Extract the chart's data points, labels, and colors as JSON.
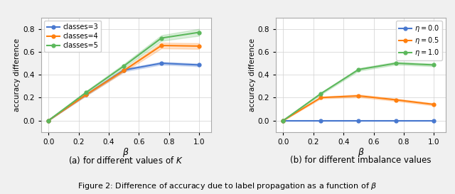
{
  "left": {
    "beta": [
      0.0,
      0.25,
      0.5,
      0.75,
      1.0
    ],
    "classes3_mean": [
      0.0,
      0.225,
      0.44,
      0.5,
      0.485
    ],
    "classes3_std": [
      0.0,
      0.008,
      0.012,
      0.012,
      0.012
    ],
    "classes4_mean": [
      0.0,
      0.225,
      0.435,
      0.655,
      0.65
    ],
    "classes4_std": [
      0.0,
      0.008,
      0.012,
      0.025,
      0.025
    ],
    "classes5_mean": [
      0.0,
      0.245,
      0.475,
      0.72,
      0.77
    ],
    "classes5_std": [
      0.0,
      0.012,
      0.018,
      0.025,
      0.03
    ],
    "colors": [
      "#4878cf",
      "#ff7f0e",
      "#5cb85c"
    ],
    "labels": [
      "classes=3",
      "classes=4",
      "classes=5"
    ],
    "xlabel": "$\\beta$",
    "ylabel": "accuracy difference",
    "ylim": [
      -0.1,
      0.9
    ],
    "yticks": [
      0.0,
      0.2,
      0.4,
      0.6,
      0.8
    ],
    "xticks": [
      0.0,
      0.2,
      0.4,
      0.6,
      0.8,
      1.0
    ],
    "caption": "(a) for different values of $K$"
  },
  "right": {
    "beta": [
      0.0,
      0.25,
      0.5,
      0.75,
      1.0
    ],
    "eta0_mean": [
      0.0,
      0.0,
      0.0,
      0.0,
      0.0
    ],
    "eta0_std": [
      0.0,
      0.0,
      0.0,
      0.0,
      0.0
    ],
    "eta05_mean": [
      0.0,
      0.2,
      0.215,
      0.18,
      0.14
    ],
    "eta05_std": [
      0.0,
      0.008,
      0.012,
      0.01,
      0.01
    ],
    "eta1_mean": [
      0.0,
      0.235,
      0.445,
      0.5,
      0.485
    ],
    "eta1_std": [
      0.0,
      0.008,
      0.012,
      0.012,
      0.012
    ],
    "colors": [
      "#4878cf",
      "#ff7f0e",
      "#5cb85c"
    ],
    "labels": [
      "$\\eta=0.0$",
      "$\\eta=0.5$",
      "$\\eta=1.0$"
    ],
    "xlabel": "$\\beta$",
    "ylabel": "accuracy difference",
    "ylim": [
      -0.1,
      0.9
    ],
    "yticks": [
      0.0,
      0.2,
      0.4,
      0.6,
      0.8
    ],
    "xticks": [
      0.0,
      0.2,
      0.4,
      0.6,
      0.8,
      1.0
    ],
    "caption": "(b) for different imbalance values"
  },
  "figure_caption": "Figure 2: Difference of accuracy due to label propagation as a function of $\\beta$",
  "bg_color": "#f0f0f0",
  "fig_width": 6.4,
  "fig_height": 2.73,
  "dpi": 100
}
